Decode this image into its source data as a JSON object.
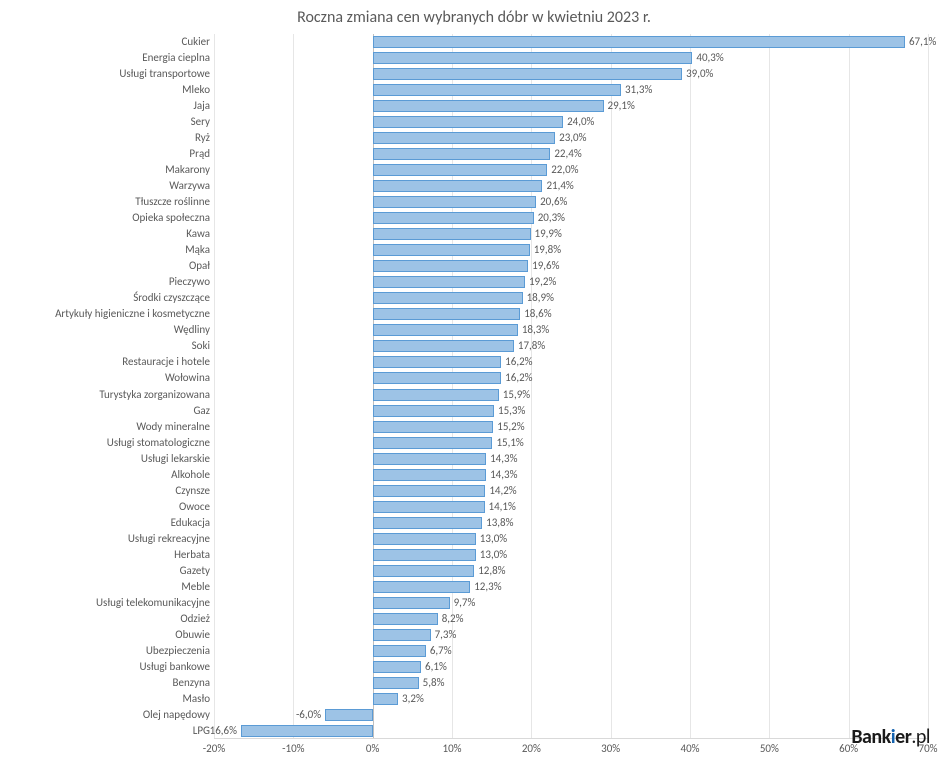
{
  "chart": {
    "type": "bar-horizontal",
    "title": "Roczna zmiana cen wybranych dóbr w kwietniu 2023 r.",
    "title_fontsize": 16,
    "title_color": "#595959",
    "background_color": "#ffffff",
    "bar_fill": "#9dc3e6",
    "bar_border": "#5b9bd5",
    "grid_color": "#e6e6e6",
    "axis_color": "#bfbfbf",
    "label_fontsize": 11,
    "label_color": "#595959",
    "xmin": -20,
    "xmax": 70,
    "xtick_step": 10,
    "xticks": [
      "-20%",
      "-10%",
      "0%",
      "10%",
      "20%",
      "30%",
      "40%",
      "50%",
      "60%",
      "70%"
    ],
    "data": [
      {
        "label": "Cukier",
        "value": 67.1,
        "text": "67,1%"
      },
      {
        "label": "Energia cieplna",
        "value": 40.3,
        "text": "40,3%"
      },
      {
        "label": "Usługi transportowe",
        "value": 39.0,
        "text": "39,0%"
      },
      {
        "label": "Mleko",
        "value": 31.3,
        "text": "31,3%"
      },
      {
        "label": "Jaja",
        "value": 29.1,
        "text": "29,1%"
      },
      {
        "label": "Sery",
        "value": 24.0,
        "text": "24,0%"
      },
      {
        "label": "Ryż",
        "value": 23.0,
        "text": "23,0%"
      },
      {
        "label": "Prąd",
        "value": 22.4,
        "text": "22,4%"
      },
      {
        "label": "Makarony",
        "value": 22.0,
        "text": "22,0%"
      },
      {
        "label": "Warzywa",
        "value": 21.4,
        "text": "21,4%"
      },
      {
        "label": "Tłuszcze roślinne",
        "value": 20.6,
        "text": "20,6%"
      },
      {
        "label": "Opieka społeczna",
        "value": 20.3,
        "text": "20,3%"
      },
      {
        "label": "Kawa",
        "value": 19.9,
        "text": "19,9%"
      },
      {
        "label": "Mąka",
        "value": 19.8,
        "text": "19,8%"
      },
      {
        "label": "Opał",
        "value": 19.6,
        "text": "19,6%"
      },
      {
        "label": "Pieczywo",
        "value": 19.2,
        "text": "19,2%"
      },
      {
        "label": "Środki czyszczące",
        "value": 18.9,
        "text": "18,9%"
      },
      {
        "label": "Artykuły higieniczne i kosmetyczne",
        "value": 18.6,
        "text": "18,6%"
      },
      {
        "label": "Wędliny",
        "value": 18.3,
        "text": "18,3%"
      },
      {
        "label": "Soki",
        "value": 17.8,
        "text": "17,8%"
      },
      {
        "label": "Restauracje i hotele",
        "value": 16.2,
        "text": "16,2%"
      },
      {
        "label": "Wołowina",
        "value": 16.2,
        "text": "16,2%"
      },
      {
        "label": "Turystyka zorganizowana",
        "value": 15.9,
        "text": "15,9%"
      },
      {
        "label": "Gaz",
        "value": 15.3,
        "text": "15,3%"
      },
      {
        "label": "Wody mineralne",
        "value": 15.2,
        "text": "15,2%"
      },
      {
        "label": "Usługi stomatologiczne",
        "value": 15.1,
        "text": "15,1%"
      },
      {
        "label": "Usługi lekarskie",
        "value": 14.3,
        "text": "14,3%"
      },
      {
        "label": "Alkohole",
        "value": 14.3,
        "text": "14,3%"
      },
      {
        "label": "Czynsze",
        "value": 14.2,
        "text": "14,2%"
      },
      {
        "label": "Owoce",
        "value": 14.1,
        "text": "14,1%"
      },
      {
        "label": "Edukacja",
        "value": 13.8,
        "text": "13,8%"
      },
      {
        "label": "Usługi rekreacyjne",
        "value": 13.0,
        "text": "13,0%"
      },
      {
        "label": "Herbata",
        "value": 13.0,
        "text": "13,0%"
      },
      {
        "label": "Gazety",
        "value": 12.8,
        "text": "12,8%"
      },
      {
        "label": "Meble",
        "value": 12.3,
        "text": "12,3%"
      },
      {
        "label": "Usługi telekomunikacyjne",
        "value": 9.7,
        "text": "9,7%"
      },
      {
        "label": "Odzież",
        "value": 8.2,
        "text": "8,2%"
      },
      {
        "label": "Obuwie",
        "value": 7.3,
        "text": "7,3%"
      },
      {
        "label": "Ubezpieczenia",
        "value": 6.7,
        "text": "6,7%"
      },
      {
        "label": "Usługi bankowe",
        "value": 6.1,
        "text": "6,1%"
      },
      {
        "label": "Benzyna",
        "value": 5.8,
        "text": "5,8%"
      },
      {
        "label": "Masło",
        "value": 3.2,
        "text": "3,2%"
      },
      {
        "label": "Olej napędowy",
        "value": -6.0,
        "text": "-6,0%"
      },
      {
        "label": "LPG",
        "value": -16.6,
        "text": "-16,6%"
      }
    ]
  },
  "logo": {
    "text_bank": "Bank",
    "text_i": "i",
    "text_er": "er",
    "text_pl": ".pl"
  }
}
